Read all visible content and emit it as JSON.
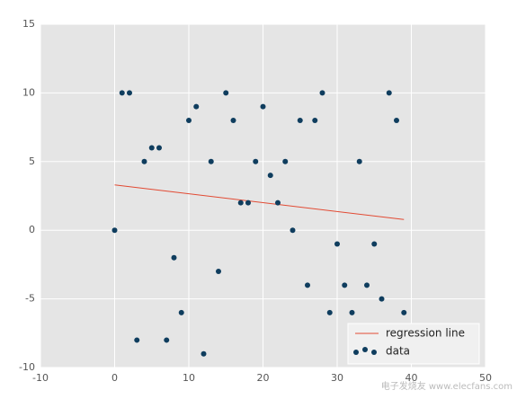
{
  "chart_data": {
    "type": "scatter",
    "xlim": [
      -10,
      50
    ],
    "xticks": [
      -10,
      0,
      10,
      20,
      30,
      40,
      50
    ],
    "ylim": [
      -10,
      15
    ],
    "yticks": [
      -10,
      -5,
      0,
      5,
      10,
      15
    ],
    "grid": true,
    "legend": "lower right",
    "series": [
      {
        "name": "regression line",
        "kind": "line",
        "color": "#e24a33",
        "x": [
          0,
          39
        ],
        "values": [
          3.3,
          0.78
        ]
      },
      {
        "name": "data",
        "kind": "points",
        "color": "#0f3d5e",
        "x": [
          0,
          1,
          2,
          3,
          4,
          5,
          6,
          7,
          8,
          9,
          10,
          11,
          12,
          13,
          14,
          15,
          16,
          17,
          18,
          19,
          20,
          21,
          22,
          23,
          24,
          25,
          26,
          27,
          28,
          29,
          30,
          31,
          32,
          33,
          34,
          35,
          36,
          37,
          38,
          39
        ],
        "values": [
          0,
          10,
          10,
          -8,
          5,
          6,
          6,
          -8,
          -2,
          -6,
          8,
          9,
          -9,
          5,
          -3,
          10,
          8,
          2,
          2,
          5,
          9,
          4,
          2,
          5,
          0,
          8,
          -4,
          8,
          10,
          -6,
          -1,
          -4,
          -6,
          5,
          -4,
          -1,
          -5,
          10,
          8,
          -6
        ]
      }
    ],
    "watermark": "电子发烧友 www.elecfans.com"
  }
}
